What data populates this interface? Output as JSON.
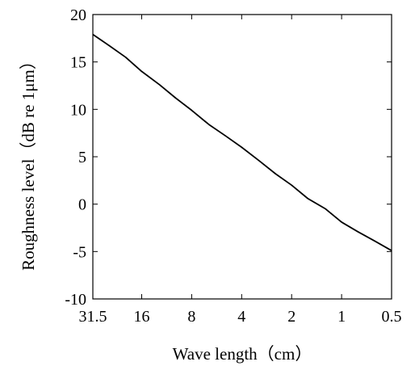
{
  "chart_data": {
    "type": "line",
    "title": "",
    "xlabel": "Wave length（cm）",
    "ylabel": "Roughness level（dB re 1μm）",
    "x_scale": "log",
    "x_ticks": [
      31.5,
      16,
      8,
      4,
      2,
      1,
      0.5
    ],
    "x_tick_labels": [
      "31.5",
      "16",
      "8",
      "4",
      "2",
      "1",
      "0.5"
    ],
    "xlim": [
      31.5,
      0.5
    ],
    "ylim": [
      -10,
      20
    ],
    "y_ticks": [
      -10,
      -5,
      0,
      5,
      10,
      15,
      20
    ],
    "y_tick_labels": [
      "-10",
      "-5",
      "0",
      "5",
      "10",
      "15",
      "20"
    ],
    "grid": false,
    "series": [
      {
        "x": [
          31.5,
          25,
          20,
          16,
          12.5,
          10,
          8,
          6.3,
          5,
          4,
          3.15,
          2.5,
          2,
          1.6,
          1.25,
          1,
          0.8,
          0.63,
          0.5
        ],
        "values": [
          17.9,
          16.7,
          15.5,
          14.0,
          12.6,
          11.2,
          9.9,
          8.4,
          7.2,
          6.0,
          4.6,
          3.2,
          2.0,
          0.6,
          -0.5,
          -1.9,
          -2.9,
          -3.9,
          -4.9
        ],
        "color": "#000000"
      }
    ]
  }
}
